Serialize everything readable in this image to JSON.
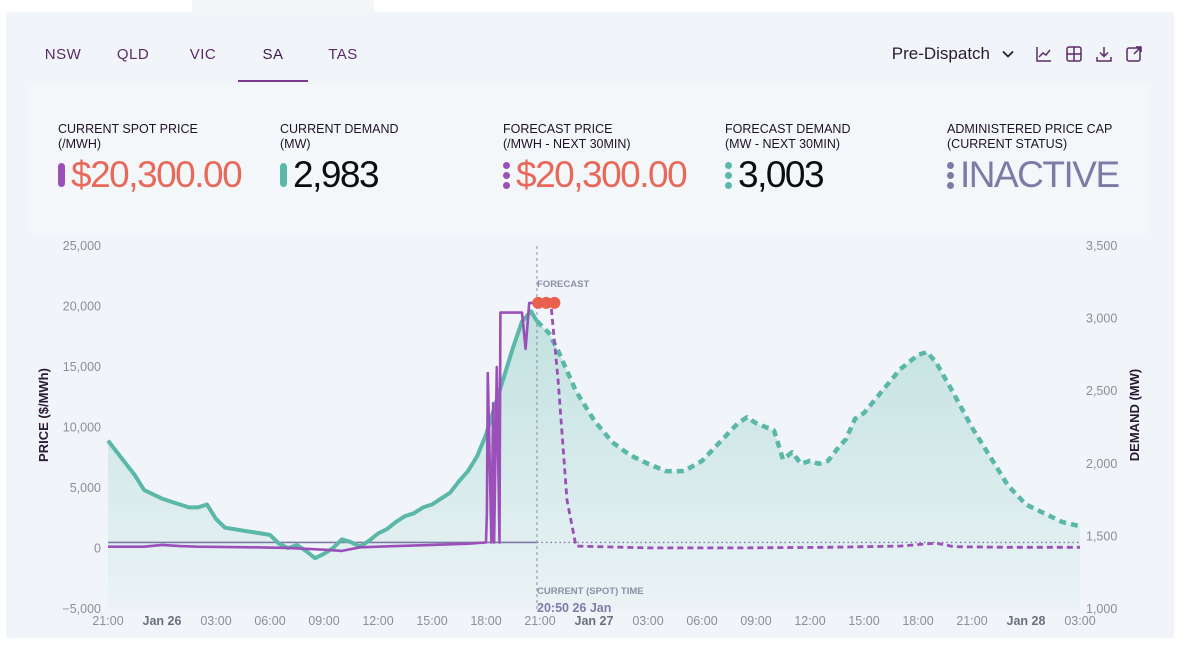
{
  "tabs": {
    "items": [
      "NSW",
      "QLD",
      "VIC",
      "SA",
      "TAS"
    ],
    "active": "SA"
  },
  "toolbar": {
    "dispatch_label": "Pre-Dispatch",
    "icons": [
      "chevron-down-icon",
      "line-chart-icon",
      "table-icon",
      "download-icon",
      "expand-icon"
    ]
  },
  "metrics": {
    "spot_price": {
      "label": "CURRENT SPOT PRICE",
      "sublabel": "(/MWh)",
      "value": "$20,300.00"
    },
    "demand": {
      "label": "CURRENT DEMAND",
      "sublabel": "(MW)",
      "value": "2,983"
    },
    "forecast_price": {
      "label": "FORECAST PRICE",
      "sublabel": "(/MWh - NEXT 30MIN)",
      "value": "$20,300.00"
    },
    "forecast_demand": {
      "label": "FORECAST DEMAND",
      "sublabel": "(MW - NEXT 30MIN)",
      "value": "3,003"
    },
    "price_cap": {
      "label": "ADMINISTERED PRICE CAP",
      "sublabel": "(CURRENT STATUS)",
      "value": "INACTIVE"
    }
  },
  "colors": {
    "price": "#9b4fb8",
    "demand": "#5bb8a8",
    "price_value": "#e8695a",
    "cap_value": "#7e7aa6",
    "forecast_dots": "#e8604e"
  },
  "chart_data": {
    "type": "line",
    "ylabel": "PRICE ($/MWh)",
    "y2label": "DEMAND (MW)",
    "ylim": [
      -5000,
      25000
    ],
    "y2lim": [
      1000,
      3500
    ],
    "yticks": [
      "25,000",
      "20,000",
      "15,000",
      "10,000",
      "5,000",
      "0",
      "−5,000"
    ],
    "y2ticks": [
      "3,500",
      "3,000",
      "2,500",
      "2,000",
      "1,500",
      "1,000"
    ],
    "xlim_hours": [
      0,
      54
    ],
    "xticks": [
      "21:00",
      "Jan 26",
      "03:00",
      "06:00",
      "09:00",
      "12:00",
      "15:00",
      "18:00",
      "21:00",
      "Jan 27",
      "03:00",
      "06:00",
      "09:00",
      "12:00",
      "15:00",
      "18:00",
      "21:00",
      "Jan 28",
      "03:00"
    ],
    "bold_xticks": [
      "Jan 26",
      "Jan 27",
      "Jan 28"
    ],
    "forecast_label": "FORECAST",
    "current_time_label": "CURRENT (SPOT) TIME",
    "current_time_value": "20:50 26 Jan",
    "current_time_hour": 23.83,
    "cap_line_price": 500,
    "series": [
      {
        "name": "Demand",
        "axis": "right",
        "style": "solid",
        "points": [
          [
            0,
            2160
          ],
          [
            0.5,
            2080
          ],
          [
            1,
            2000
          ],
          [
            1.5,
            1920
          ],
          [
            2,
            1820
          ],
          [
            2.5,
            1790
          ],
          [
            3,
            1760
          ],
          [
            3.5,
            1740
          ],
          [
            4,
            1720
          ],
          [
            4.5,
            1700
          ],
          [
            5,
            1700
          ],
          [
            5.5,
            1720
          ],
          [
            6,
            1620
          ],
          [
            6.5,
            1560
          ],
          [
            7,
            1550
          ],
          [
            7.5,
            1540
          ],
          [
            8,
            1530
          ],
          [
            9,
            1510
          ],
          [
            9.5,
            1450
          ],
          [
            10,
            1420
          ],
          [
            10.5,
            1440
          ],
          [
            11,
            1400
          ],
          [
            11.5,
            1350
          ],
          [
            12,
            1380
          ],
          [
            12.5,
            1420
          ],
          [
            13,
            1480
          ],
          [
            13.5,
            1460
          ],
          [
            14,
            1430
          ],
          [
            14.5,
            1470
          ],
          [
            15,
            1520
          ],
          [
            15.5,
            1550
          ],
          [
            16,
            1600
          ],
          [
            16.5,
            1640
          ],
          [
            17,
            1660
          ],
          [
            17.5,
            1700
          ],
          [
            18,
            1720
          ],
          [
            18.5,
            1760
          ],
          [
            19,
            1800
          ],
          [
            19.5,
            1880
          ],
          [
            20,
            1950
          ],
          [
            20.5,
            2050
          ],
          [
            21,
            2200
          ],
          [
            21.5,
            2400
          ],
          [
            22,
            2600
          ],
          [
            22.5,
            2800
          ],
          [
            23,
            2980
          ],
          [
            23.5,
            3050
          ],
          [
            23.83,
            2983
          ]
        ]
      },
      {
        "name": "Demand forecast",
        "axis": "right",
        "style": "dashed",
        "points": [
          [
            23.83,
            2983
          ],
          [
            24.5,
            2900
          ],
          [
            25,
            2780
          ],
          [
            26,
            2500
          ],
          [
            27,
            2300
          ],
          [
            28,
            2150
          ],
          [
            29,
            2060
          ],
          [
            30,
            2000
          ],
          [
            31,
            1950
          ],
          [
            32,
            1950
          ],
          [
            33,
            2020
          ],
          [
            34,
            2150
          ],
          [
            35,
            2280
          ],
          [
            35.5,
            2320
          ],
          [
            36,
            2280
          ],
          [
            37,
            2230
          ],
          [
            37.5,
            2030
          ],
          [
            38,
            2080
          ],
          [
            38.5,
            2000
          ],
          [
            39,
            2020
          ],
          [
            39.5,
            2000
          ],
          [
            40,
            2020
          ],
          [
            40.5,
            2100
          ],
          [
            41,
            2170
          ],
          [
            41.5,
            2310
          ],
          [
            42,
            2350
          ],
          [
            43,
            2500
          ],
          [
            44,
            2650
          ],
          [
            45,
            2750
          ],
          [
            45.5,
            2770
          ],
          [
            46,
            2700
          ],
          [
            47,
            2480
          ],
          [
            48,
            2250
          ],
          [
            49,
            2050
          ],
          [
            50,
            1850
          ],
          [
            51,
            1720
          ],
          [
            52,
            1660
          ],
          [
            53,
            1600
          ],
          [
            54,
            1570
          ]
        ]
      },
      {
        "name": "Price",
        "axis": "left",
        "style": "solid",
        "points": [
          [
            0,
            150
          ],
          [
            2,
            150
          ],
          [
            3,
            300
          ],
          [
            4,
            200
          ],
          [
            5,
            150
          ],
          [
            8,
            100
          ],
          [
            10,
            50
          ],
          [
            12,
            -100
          ],
          [
            13,
            -200
          ],
          [
            14,
            100
          ],
          [
            16,
            200
          ],
          [
            18,
            300
          ],
          [
            20,
            400
          ],
          [
            21,
            500
          ],
          [
            21.05,
            3000
          ],
          [
            21.1,
            14500
          ],
          [
            21.3,
            500
          ],
          [
            21.4,
            12000
          ],
          [
            21.45,
            500
          ],
          [
            21.6,
            15000
          ],
          [
            21.75,
            500
          ],
          [
            21.8,
            19500
          ],
          [
            23,
            19500
          ],
          [
            23.2,
            16500
          ],
          [
            23.4,
            20300
          ],
          [
            23.83,
            20300
          ]
        ]
      },
      {
        "name": "Price forecast",
        "axis": "left",
        "style": "dashed",
        "points": [
          [
            23.83,
            20300
          ],
          [
            24.6,
            20300
          ],
          [
            25,
            14000
          ],
          [
            25.5,
            4000
          ],
          [
            26,
            200
          ],
          [
            30,
            50
          ],
          [
            35,
            50
          ],
          [
            40,
            100
          ],
          [
            44,
            200
          ],
          [
            46,
            450
          ],
          [
            47,
            150
          ],
          [
            50,
            100
          ],
          [
            54,
            100
          ]
        ]
      }
    ],
    "forecast_markers": [
      [
        23.9,
        20300
      ],
      [
        24.35,
        20300
      ],
      [
        24.8,
        20300
      ]
    ]
  }
}
